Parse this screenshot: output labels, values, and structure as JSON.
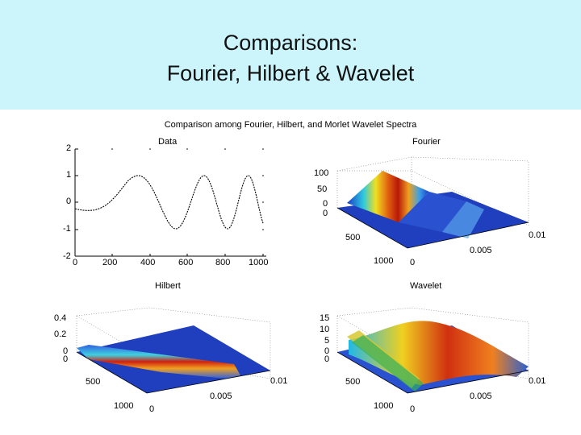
{
  "slide": {
    "title_line1": "Comparisons:",
    "title_line2": "Fourier, Hilbert & Wavelet"
  },
  "figure": {
    "title": "Comparison among Fourier, Hilbert, and Morlet Wavelet Spectra",
    "panels": {
      "data": {
        "title": "Data",
        "x_ticks": [
          "0",
          "200",
          "400",
          "600",
          "800",
          "1000"
        ],
        "y_ticks": [
          "2",
          "1",
          "0",
          "-1",
          "-2"
        ]
      },
      "fourier": {
        "title": "Fourier",
        "z_ticks": [
          "100",
          "50",
          "0"
        ],
        "left_ticks": [
          "0",
          "500",
          "1000"
        ],
        "right_ticks": [
          "0",
          "0.005",
          "0.01"
        ]
      },
      "hilbert": {
        "title": "Hilbert",
        "z_ticks": [
          "0.4",
          "0.2",
          "0"
        ],
        "left_ticks": [
          "0",
          "500",
          "1000"
        ],
        "right_ticks": [
          "0",
          "0.005",
          "0.01"
        ]
      },
      "wavelet": {
        "title": "Wavelet",
        "z_ticks": [
          "15",
          "10",
          "5",
          "0"
        ],
        "left_ticks": [
          "0",
          "500",
          "1000"
        ],
        "right_ticks": [
          "0",
          "0.005",
          "0.01"
        ]
      }
    }
  },
  "colors": {
    "title_band": "#ccf5fb",
    "surface_low": "#1f3fbf",
    "surface_high": "#c01a0a"
  }
}
